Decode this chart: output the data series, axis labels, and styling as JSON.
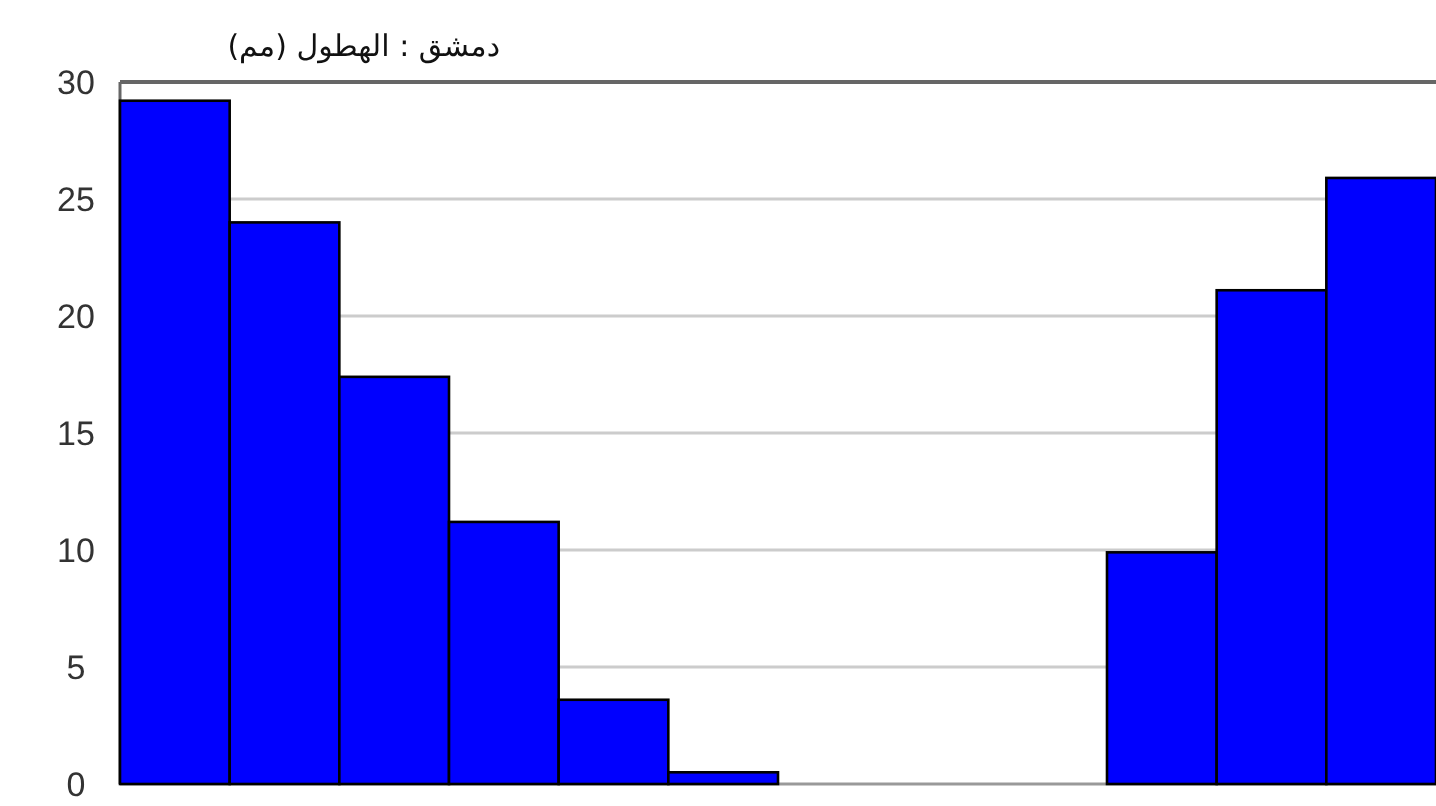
{
  "chart_data": {
    "type": "bar",
    "title": "دمشق : الهطول (مم)",
    "categories": [
      null,
      null,
      null,
      null,
      null,
      null,
      null,
      null,
      null,
      null,
      null,
      null
    ],
    "values": [
      29.2,
      24.0,
      17.4,
      11.2,
      3.6,
      0.5,
      0,
      0,
      0,
      9.9,
      21.1,
      25.9
    ],
    "color": "#0000ff",
    "ylim": [
      0,
      30
    ],
    "yticks": [
      0,
      5,
      10,
      15,
      20,
      25,
      30
    ],
    "grid": "y"
  }
}
